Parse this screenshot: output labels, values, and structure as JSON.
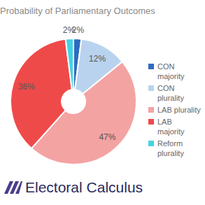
{
  "chart_data": {
    "type": "pie",
    "title": "Probability of Parliamentary Outcomes",
    "categories": [
      "CON majority",
      "CON plurality",
      "LAB plurality",
      "LAB majority",
      "Reform plurality"
    ],
    "values": [
      2,
      12,
      47,
      36,
      2
    ],
    "value_labels": [
      "2%",
      "12%",
      "47%",
      "36%",
      "2%"
    ],
    "colors": [
      "#2e6bc0",
      "#b9d3ef",
      "#f4a3a3",
      "#ef4a4a",
      "#43d3e3"
    ],
    "data_labels": true,
    "legend": "right",
    "annotations": [
      "Electoral Calculus"
    ]
  }
}
